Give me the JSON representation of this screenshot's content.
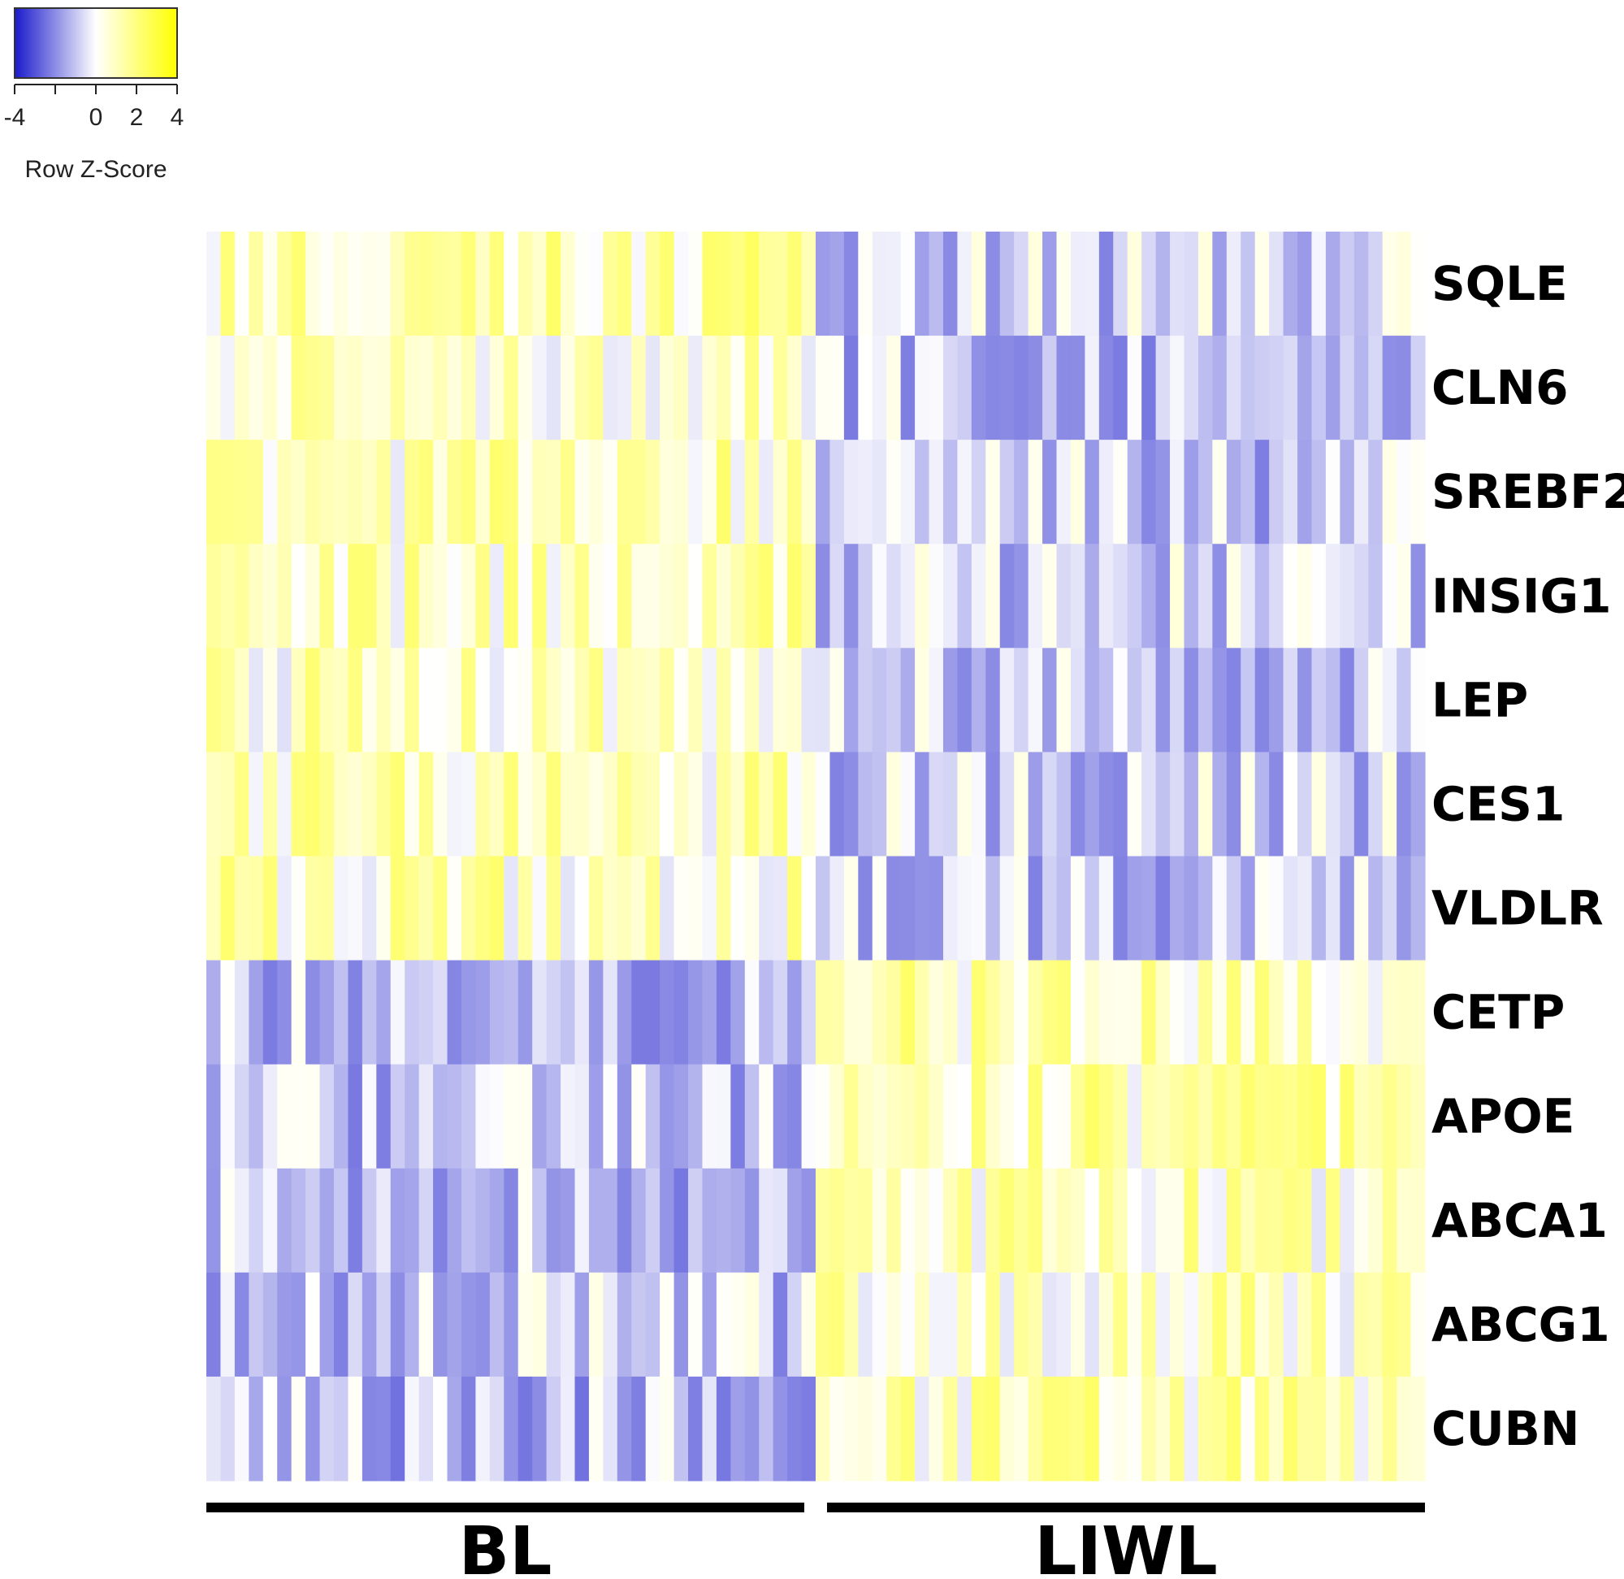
{
  "chart_data": {
    "type": "heatmap",
    "title": "",
    "xlabel": "",
    "ylabel": "",
    "rows": [
      "SQLE",
      "CLN6",
      "SREBF2",
      "INSIG1",
      "LEP",
      "CES1",
      "VLDLR",
      "CETP",
      "APOE",
      "ABCA1",
      "ABCG1",
      "CUBN"
    ],
    "groups": [
      {
        "name": "BL",
        "n_columns": 43
      },
      {
        "name": "LIWL",
        "n_columns": 43
      }
    ],
    "row_group_mean_zscore": {
      "SQLE": {
        "BL": 1.2,
        "LIWL": -0.8
      },
      "CLN6": {
        "BL": 0.9,
        "LIWL": -1.0
      },
      "SREBF2": {
        "BL": 1.0,
        "LIWL": -0.9
      },
      "INSIG1": {
        "BL": 0.9,
        "LIWL": -0.8
      },
      "LEP": {
        "BL": 0.8,
        "LIWL": -0.9
      },
      "CES1": {
        "BL": 0.9,
        "LIWL": -0.8
      },
      "VLDLR": {
        "BL": 0.9,
        "LIWL": -0.9
      },
      "CETP": {
        "BL": -1.1,
        "LIWL": 1.0
      },
      "APOE": {
        "BL": -1.0,
        "LIWL": 1.0
      },
      "ABCA1": {
        "BL": -1.1,
        "LIWL": 0.9
      },
      "ABCG1": {
        "BL": -0.9,
        "LIWL": 0.9
      },
      "CUBN": {
        "BL": -1.1,
        "LIWL": 1.0
      }
    },
    "color_key": {
      "title": "Row Z-Score",
      "range": [
        -4,
        4
      ],
      "tick_labels": [
        "-4",
        "0",
        "2",
        "4"
      ],
      "tick_values": [
        -4,
        0,
        2,
        4
      ],
      "colors": {
        "low": "#1a1acc",
        "mid": "#ffffff",
        "high": "#ffff00"
      },
      "position": "top-left"
    },
    "grid": false,
    "legend": "top-left"
  }
}
